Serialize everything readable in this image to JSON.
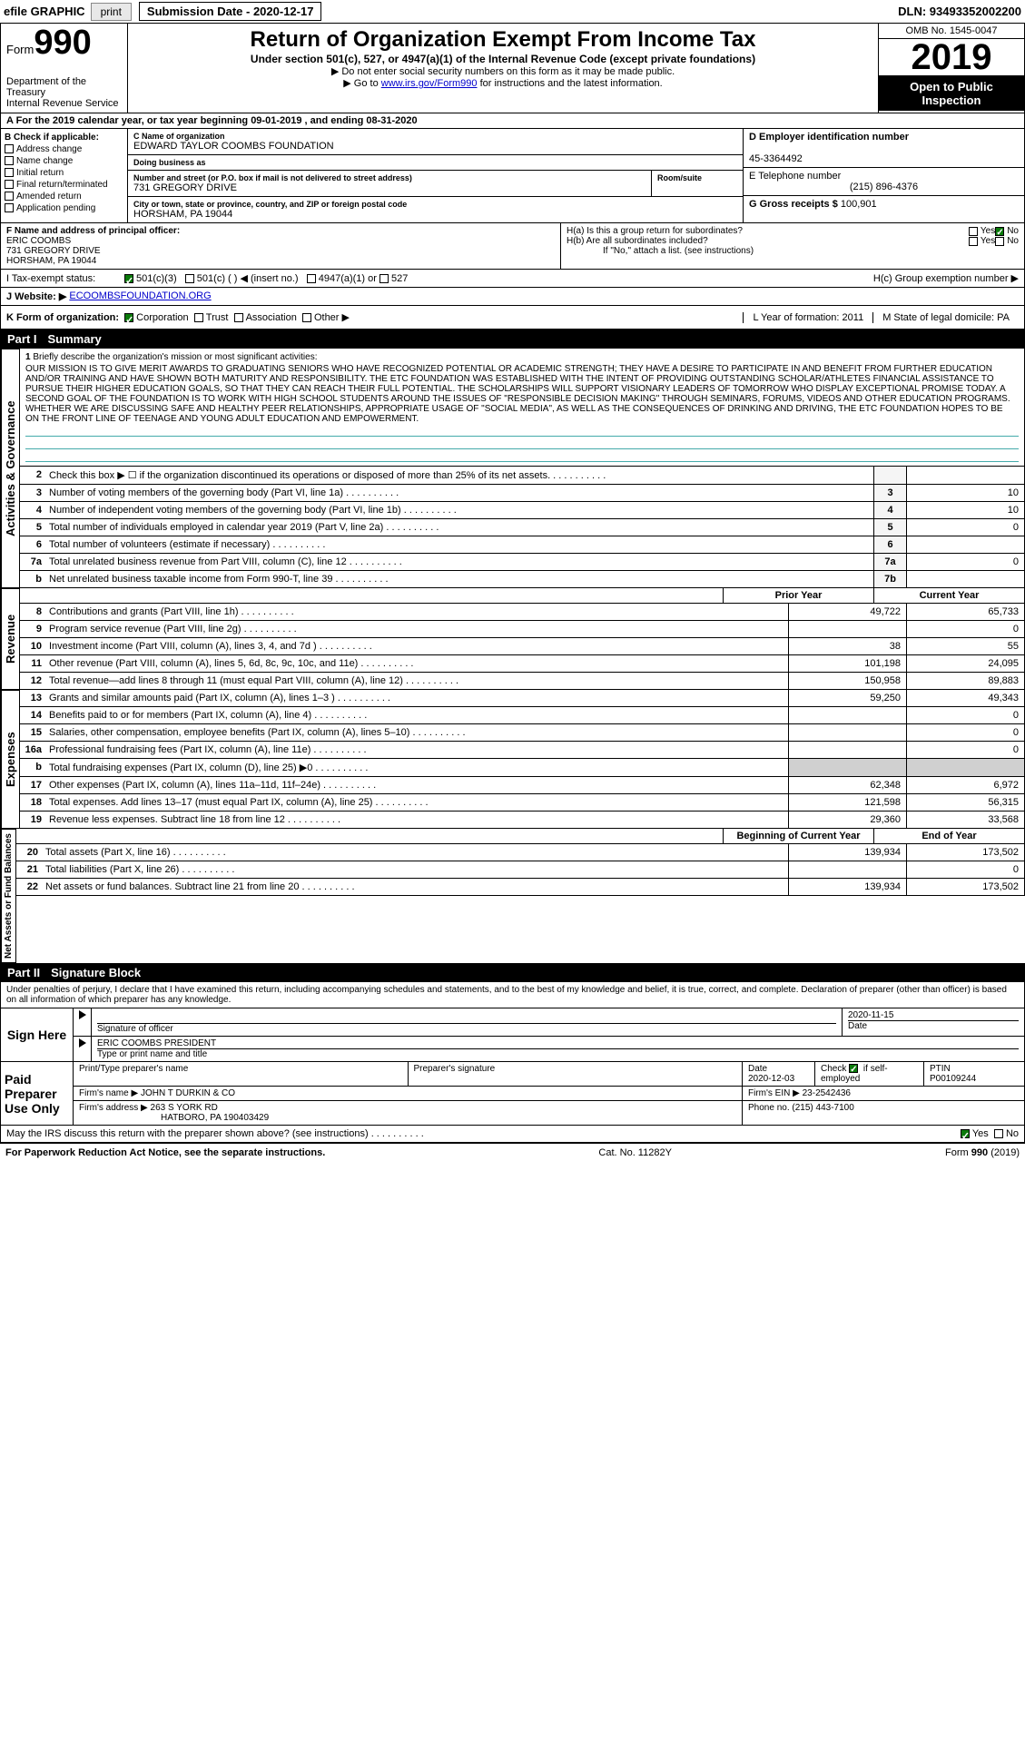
{
  "topbar": {
    "efile": "efile GRAPHIC",
    "print": "print",
    "submission": "Submission Date - 2020-12-17",
    "dln": "DLN: 93493352002200"
  },
  "header": {
    "form_word": "Form",
    "form_num": "990",
    "dept": "Department of the Treasury\nInternal Revenue Service",
    "title": "Return of Organization Exempt From Income Tax",
    "sub": "Under section 501(c), 527, or 4947(a)(1) of the Internal Revenue Code (except private foundations)",
    "note1": "▶ Do not enter social security numbers on this form as it may be made public.",
    "note2_pre": "▶ Go to ",
    "note2_link": "www.irs.gov/Form990",
    "note2_post": " for instructions and the latest information.",
    "omb": "OMB No. 1545-0047",
    "year": "2019",
    "inspect": "Open to Public Inspection"
  },
  "period": "A For the 2019 calendar year, or tax year beginning 09-01-2019   , and ending 08-31-2020",
  "boxB": {
    "hdr": "B Check if applicable:",
    "opts": [
      "Address change",
      "Name change",
      "Initial return",
      "Final return/terminated",
      "Amended return",
      "Application pending"
    ]
  },
  "boxC": {
    "name_lbl": "C Name of organization",
    "name": "EDWARD TAYLOR COOMBS FOUNDATION",
    "dba_lbl": "Doing business as",
    "dba": "",
    "street_lbl": "Number and street (or P.O. box if mail is not delivered to street address)",
    "street": "731 GREGORY DRIVE",
    "room_lbl": "Room/suite",
    "city_lbl": "City or town, state or province, country, and ZIP or foreign postal code",
    "city": "HORSHAM, PA  19044"
  },
  "boxD": {
    "ein_lbl": "D Employer identification number",
    "ein": "45-3364492",
    "phone_lbl": "E Telephone number",
    "phone": "(215) 896-4376",
    "gross_lbl": "G Gross receipts $",
    "gross": "100,901"
  },
  "boxF": {
    "lbl": "F  Name and address of principal officer:",
    "name": "ERIC COOMBS",
    "addr1": "731 GREGORY DRIVE",
    "addr2": "HORSHAM, PA  19044"
  },
  "boxH": {
    "a": "H(a)  Is this a group return for subordinates?",
    "b": "H(b)  Are all subordinates included?",
    "note": "If \"No,\" attach a list. (see instructions)",
    "c": "H(c)  Group exemption number ▶",
    "yes": "Yes",
    "no": "No"
  },
  "statusI": {
    "lbl": "I  Tax-exempt status:",
    "o1": "501(c)(3)",
    "o2": "501(c) (  ) ◀ (insert no.)",
    "o3": "4947(a)(1) or",
    "o4": "527"
  },
  "websiteJ": {
    "lbl": "J  Website: ▶",
    "val": "ECOOMBSFOUNDATION.ORG"
  },
  "rowK": {
    "lbl": "K Form of organization:",
    "o1": "Corporation",
    "o2": "Trust",
    "o3": "Association",
    "o4": "Other ▶",
    "L": "L Year of formation: 2011",
    "M": "M State of legal domicile: PA"
  },
  "part1": {
    "pn": "Part I",
    "title": "Summary"
  },
  "part2": {
    "pn": "Part II",
    "title": "Signature Block"
  },
  "tabs": {
    "ag": "Activities & Governance",
    "rev": "Revenue",
    "exp": "Expenses",
    "net": "Net Assets or Fund Balances"
  },
  "mission": {
    "num": "1",
    "lbl": "Briefly describe the organization's mission or most significant activities:",
    "body": "OUR MISSION IS TO GIVE MERIT AWARDS TO GRADUATING SENIORS WHO HAVE RECOGNIZED POTENTIAL OR ACADEMIC STRENGTH; THEY HAVE A DESIRE TO PARTICIPATE IN AND BENEFIT FROM FURTHER EDUCATION AND/OR TRAINING AND HAVE SHOWN BOTH MATURITY AND RESPONSIBILITY. THE ETC FOUNDATION WAS ESTABLISHED WITH THE INTENT OF PROVIDING OUTSTANDING SCHOLAR/ATHLETES FINANCIAL ASSISTANCE TO PURSUE THEIR HIGHER EDUCATION GOALS, SO THAT THEY CAN REACH THEIR FULL POTENTIAL. THE SCHOLARSHIPS WILL SUPPORT VISIONARY LEADERS OF TOMORROW WHO DISPLAY EXCEPTIONAL PROMISE TODAY. A SECOND GOAL OF THE FOUNDATION IS TO WORK WITH HIGH SCHOOL STUDENTS AROUND THE ISSUES OF \"RESPONSIBLE DECISION MAKING\" THROUGH SEMINARS, FORUMS, VIDEOS AND OTHER EDUCATION PROGRAMS. WHETHER WE ARE DISCUSSING SAFE AND HEALTHY PEER RELATIONSHIPS, APPROPRIATE USAGE OF \"SOCIAL MEDIA\", AS WELL AS THE CONSEQUENCES OF DRINKING AND DRIVING, THE ETC FOUNDATION HOPES TO BE ON THE FRONT LINE OF TEENAGE AND YOUNG ADULT EDUCATION AND EMPOWERMENT."
  },
  "lines_ag": [
    {
      "n": "2",
      "t": "Check this box ▶ ☐ if the organization discontinued its operations or disposed of more than 25% of its net assets.",
      "b": "",
      "v": ""
    },
    {
      "n": "3",
      "t": "Number of voting members of the governing body (Part VI, line 1a)",
      "b": "3",
      "v": "10"
    },
    {
      "n": "4",
      "t": "Number of independent voting members of the governing body (Part VI, line 1b)",
      "b": "4",
      "v": "10"
    },
    {
      "n": "5",
      "t": "Total number of individuals employed in calendar year 2019 (Part V, line 2a)",
      "b": "5",
      "v": "0"
    },
    {
      "n": "6",
      "t": "Total number of volunteers (estimate if necessary)",
      "b": "6",
      "v": ""
    },
    {
      "n": "7a",
      "t": "Total unrelated business revenue from Part VIII, column (C), line 12",
      "b": "7a",
      "v": "0"
    },
    {
      "n": "b",
      "t": "Net unrelated business taxable income from Form 990-T, line 39",
      "b": "7b",
      "v": ""
    }
  ],
  "col_hdr": {
    "prior": "Prior Year",
    "current": "Current Year",
    "begin": "Beginning of Current Year",
    "end": "End of Year"
  },
  "lines_rev": [
    {
      "n": "8",
      "t": "Contributions and grants (Part VIII, line 1h)",
      "p": "49,722",
      "c": "65,733"
    },
    {
      "n": "9",
      "t": "Program service revenue (Part VIII, line 2g)",
      "p": "",
      "c": "0"
    },
    {
      "n": "10",
      "t": "Investment income (Part VIII, column (A), lines 3, 4, and 7d )",
      "p": "38",
      "c": "55"
    },
    {
      "n": "11",
      "t": "Other revenue (Part VIII, column (A), lines 5, 6d, 8c, 9c, 10c, and 11e)",
      "p": "101,198",
      "c": "24,095"
    },
    {
      "n": "12",
      "t": "Total revenue—add lines 8 through 11 (must equal Part VIII, column (A), line 12)",
      "p": "150,958",
      "c": "89,883"
    }
  ],
  "lines_exp": [
    {
      "n": "13",
      "t": "Grants and similar amounts paid (Part IX, column (A), lines 1–3 )",
      "p": "59,250",
      "c": "49,343"
    },
    {
      "n": "14",
      "t": "Benefits paid to or for members (Part IX, column (A), line 4)",
      "p": "",
      "c": "0"
    },
    {
      "n": "15",
      "t": "Salaries, other compensation, employee benefits (Part IX, column (A), lines 5–10)",
      "p": "",
      "c": "0"
    },
    {
      "n": "16a",
      "t": "Professional fundraising fees (Part IX, column (A), line 11e)",
      "p": "",
      "c": "0"
    },
    {
      "n": "b",
      "t": "Total fundraising expenses (Part IX, column (D), line 25) ▶0",
      "p": "GREY",
      "c": "GREY"
    },
    {
      "n": "17",
      "t": "Other expenses (Part IX, column (A), lines 11a–11d, 11f–24e)",
      "p": "62,348",
      "c": "6,972"
    },
    {
      "n": "18",
      "t": "Total expenses. Add lines 13–17 (must equal Part IX, column (A), line 25)",
      "p": "121,598",
      "c": "56,315"
    },
    {
      "n": "19",
      "t": "Revenue less expenses. Subtract line 18 from line 12",
      "p": "29,360",
      "c": "33,568"
    }
  ],
  "lines_net": [
    {
      "n": "20",
      "t": "Total assets (Part X, line 16)",
      "p": "139,934",
      "c": "173,502"
    },
    {
      "n": "21",
      "t": "Total liabilities (Part X, line 26)",
      "p": "",
      "c": "0"
    },
    {
      "n": "22",
      "t": "Net assets or fund balances. Subtract line 21 from line 20",
      "p": "139,934",
      "c": "173,502"
    }
  ],
  "sig_decl": "Under penalties of perjury, I declare that I have examined this return, including accompanying schedules and statements, and to the best of my knowledge and belief, it is true, correct, and complete. Declaration of preparer (other than officer) is based on all information of which preparer has any knowledge.",
  "sign_here": "Sign Here",
  "sig_officer_lbl": "Signature of officer",
  "sig_date_lbl": "Date",
  "sig_date": "2020-11-15",
  "sig_name": "ERIC COOMBS PRESIDENT",
  "sig_name_lbl": "Type or print name and title",
  "paid": {
    "title": "Paid Preparer Use Only",
    "h1": "Print/Type preparer's name",
    "h2": "Preparer's signature",
    "h3": "Date",
    "date": "2020-12-03",
    "h4_pre": "Check",
    "h4_post": "if self-employed",
    "h5": "PTIN",
    "ptin": "P00109244",
    "firm_lbl": "Firm's name    ▶",
    "firm": "JOHN T DURKIN & CO",
    "ein_lbl": "Firm's EIN ▶",
    "ein": "23-2542436",
    "addr_lbl": "Firm's address ▶",
    "addr": "263 S YORK RD",
    "addr2": "HATBORO, PA  190403429",
    "phone_lbl": "Phone no.",
    "phone": "(215) 443-7100"
  },
  "discuss": {
    "q": "May the IRS discuss this return with the preparer shown above? (see instructions)",
    "yes": "Yes",
    "no": "No"
  },
  "footer": {
    "left": "For Paperwork Reduction Act Notice, see the separate instructions.",
    "mid": "Cat. No. 11282Y",
    "right": "Form 990 (2019)"
  }
}
